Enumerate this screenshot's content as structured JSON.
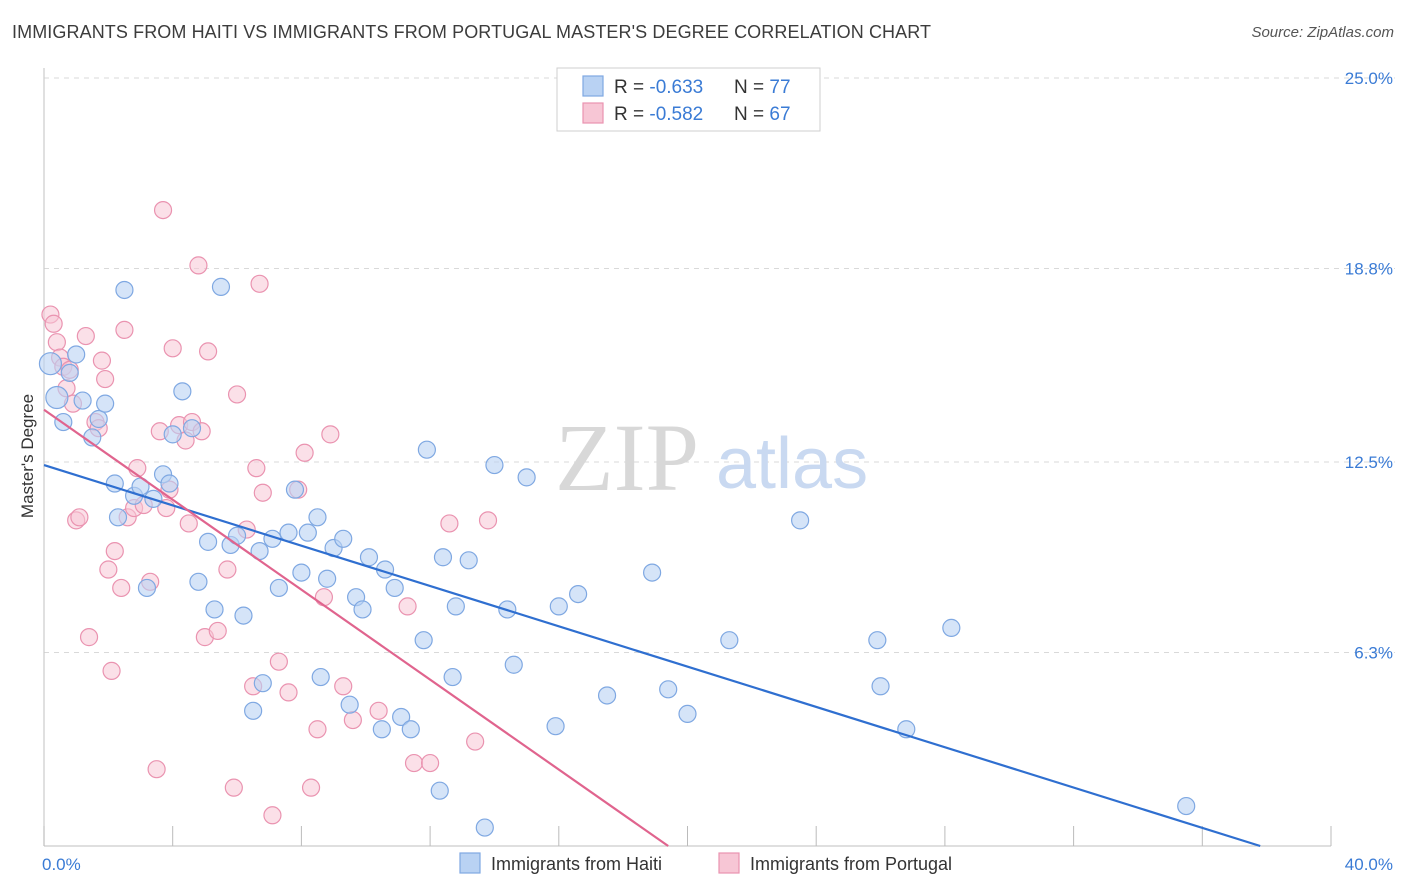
{
  "title": "IMMIGRANTS FROM HAITI VS IMMIGRANTS FROM PORTUGAL MASTER'S DEGREE CORRELATION CHART",
  "source": "Source: ZipAtlas.com",
  "watermark": {
    "zip": "ZIP",
    "atlas": "atlas"
  },
  "colors": {
    "haiti_fill": "#b9d2f3",
    "haiti_stroke": "#7fa8e2",
    "haiti_line": "#2f6fd0",
    "portugal_fill": "#f7c6d5",
    "portugal_stroke": "#ea93b0",
    "portugal_line": "#e0648e",
    "grid": "#d9d9d9",
    "tick_label": "#3a7bd5"
  },
  "legend": {
    "rows": [
      {
        "r_label": "R = ",
        "r_value": "-0.633",
        "n_label": "N = ",
        "n_value": "77"
      },
      {
        "r_label": "R = ",
        "r_value": "-0.582",
        "n_label": "N = ",
        "n_value": "67"
      }
    ]
  },
  "chart_data": {
    "type": "scatter",
    "title": "IMMIGRANTS FROM HAITI VS IMMIGRANTS FROM PORTUGAL MASTER'S DEGREE CORRELATION CHART",
    "xlabel": "",
    "ylabel": "Master's Degree",
    "xlim": [
      0,
      40
    ],
    "ylim": [
      0,
      25
    ],
    "x_tick_labels": [
      "0.0%",
      "40.0%"
    ],
    "y_ticks": [
      6.3,
      12.5,
      18.8,
      25.0
    ],
    "y_tick_labels": [
      "6.3%",
      "12.5%",
      "18.8%",
      "25.0%"
    ],
    "grid": true,
    "legend_position": "top-center",
    "series": [
      {
        "name": "Immigrants from Haiti",
        "r": -0.633,
        "n": 77,
        "trend": {
          "x0": 0,
          "y0": 12.4,
          "x1": 37.8,
          "y1": 0
        },
        "points": [
          [
            0.2,
            15.7
          ],
          [
            0.4,
            14.6
          ],
          [
            0.6,
            13.8
          ],
          [
            0.8,
            15.4
          ],
          [
            1.0,
            16.0
          ],
          [
            1.2,
            14.5
          ],
          [
            1.5,
            13.3
          ],
          [
            1.7,
            13.9
          ],
          [
            1.9,
            14.4
          ],
          [
            2.2,
            11.8
          ],
          [
            2.3,
            10.7
          ],
          [
            2.5,
            18.1
          ],
          [
            2.8,
            11.4
          ],
          [
            3.0,
            11.7
          ],
          [
            3.2,
            8.4
          ],
          [
            3.4,
            11.3
          ],
          [
            3.7,
            12.1
          ],
          [
            3.9,
            11.8
          ],
          [
            4.0,
            13.4
          ],
          [
            4.3,
            14.8
          ],
          [
            4.6,
            13.6
          ],
          [
            4.8,
            8.6
          ],
          [
            5.1,
            9.9
          ],
          [
            5.3,
            7.7
          ],
          [
            5.5,
            18.2
          ],
          [
            5.8,
            9.8
          ],
          [
            6.0,
            10.1
          ],
          [
            6.2,
            7.5
          ],
          [
            6.5,
            4.4
          ],
          [
            6.7,
            9.6
          ],
          [
            6.8,
            5.3
          ],
          [
            7.1,
            10.0
          ],
          [
            7.3,
            8.4
          ],
          [
            7.6,
            10.2
          ],
          [
            7.8,
            11.6
          ],
          [
            8.0,
            8.9
          ],
          [
            8.2,
            10.2
          ],
          [
            8.5,
            10.7
          ],
          [
            8.6,
            5.5
          ],
          [
            8.8,
            8.7
          ],
          [
            9.0,
            9.7
          ],
          [
            9.3,
            10.0
          ],
          [
            9.5,
            4.6
          ],
          [
            9.7,
            8.1
          ],
          [
            9.9,
            7.7
          ],
          [
            10.1,
            9.4
          ],
          [
            10.5,
            3.8
          ],
          [
            10.6,
            9.0
          ],
          [
            10.9,
            8.4
          ],
          [
            11.1,
            4.2
          ],
          [
            11.4,
            3.8
          ],
          [
            11.8,
            6.7
          ],
          [
            11.9,
            12.9
          ],
          [
            12.3,
            1.8
          ],
          [
            12.4,
            9.4
          ],
          [
            12.7,
            5.5
          ],
          [
            12.8,
            7.8
          ],
          [
            13.2,
            9.3
          ],
          [
            13.7,
            0.6
          ],
          [
            14.0,
            12.4
          ],
          [
            14.4,
            7.7
          ],
          [
            14.6,
            5.9
          ],
          [
            15.0,
            12.0
          ],
          [
            15.9,
            3.9
          ],
          [
            16.0,
            7.8
          ],
          [
            16.6,
            8.2
          ],
          [
            17.5,
            4.9
          ],
          [
            18.9,
            8.9
          ],
          [
            19.4,
            5.1
          ],
          [
            20.0,
            4.3
          ],
          [
            21.3,
            6.7
          ],
          [
            23.5,
            10.6
          ],
          [
            25.9,
            6.7
          ],
          [
            26.0,
            5.2
          ],
          [
            26.8,
            3.8
          ],
          [
            28.2,
            7.1
          ],
          [
            35.5,
            1.3
          ]
        ]
      },
      {
        "name": "Immigrants from Portugal",
        "r": -0.582,
        "n": 67,
        "trend": {
          "x0": 0,
          "y0": 14.2,
          "x1": 19.4,
          "y1": 0
        },
        "points": [
          [
            0.2,
            17.3
          ],
          [
            0.3,
            17.0
          ],
          [
            0.4,
            16.4
          ],
          [
            0.5,
            15.9
          ],
          [
            0.6,
            15.6
          ],
          [
            0.7,
            14.9
          ],
          [
            0.8,
            15.5
          ],
          [
            0.9,
            14.4
          ],
          [
            1.0,
            10.6
          ],
          [
            1.1,
            10.7
          ],
          [
            1.3,
            16.6
          ],
          [
            1.4,
            6.8
          ],
          [
            1.6,
            13.8
          ],
          [
            1.7,
            13.6
          ],
          [
            1.8,
            15.8
          ],
          [
            1.9,
            15.2
          ],
          [
            2.0,
            9.0
          ],
          [
            2.1,
            5.7
          ],
          [
            2.2,
            9.6
          ],
          [
            2.4,
            8.4
          ],
          [
            2.5,
            16.8
          ],
          [
            2.6,
            10.7
          ],
          [
            2.8,
            11.0
          ],
          [
            2.9,
            12.3
          ],
          [
            3.1,
            11.1
          ],
          [
            3.3,
            8.6
          ],
          [
            3.5,
            2.5
          ],
          [
            3.6,
            13.5
          ],
          [
            3.7,
            20.7
          ],
          [
            3.8,
            11.0
          ],
          [
            3.9,
            11.6
          ],
          [
            4.0,
            16.2
          ],
          [
            4.2,
            13.7
          ],
          [
            4.4,
            13.2
          ],
          [
            4.5,
            10.5
          ],
          [
            4.6,
            13.8
          ],
          [
            4.8,
            18.9
          ],
          [
            4.9,
            13.5
          ],
          [
            5.0,
            6.8
          ],
          [
            5.1,
            16.1
          ],
          [
            5.4,
            7.0
          ],
          [
            5.7,
            9.0
          ],
          [
            5.9,
            1.9
          ],
          [
            6.0,
            14.7
          ],
          [
            6.3,
            10.3
          ],
          [
            6.5,
            5.2
          ],
          [
            6.6,
            12.3
          ],
          [
            6.7,
            18.3
          ],
          [
            6.8,
            11.5
          ],
          [
            7.1,
            1.0
          ],
          [
            7.3,
            6.0
          ],
          [
            7.6,
            5.0
          ],
          [
            7.9,
            11.6
          ],
          [
            8.1,
            12.8
          ],
          [
            8.3,
            1.9
          ],
          [
            8.5,
            3.8
          ],
          [
            8.7,
            8.1
          ],
          [
            8.9,
            13.4
          ],
          [
            9.3,
            5.2
          ],
          [
            9.6,
            4.1
          ],
          [
            10.4,
            4.4
          ],
          [
            11.3,
            7.8
          ],
          [
            11.5,
            2.7
          ],
          [
            12.0,
            2.7
          ],
          [
            12.6,
            10.5
          ],
          [
            13.4,
            3.4
          ],
          [
            13.8,
            10.6
          ]
        ]
      }
    ]
  },
  "bottom_legend": {
    "items": [
      "Immigrants from Haiti",
      "Immigrants from Portugal"
    ]
  }
}
